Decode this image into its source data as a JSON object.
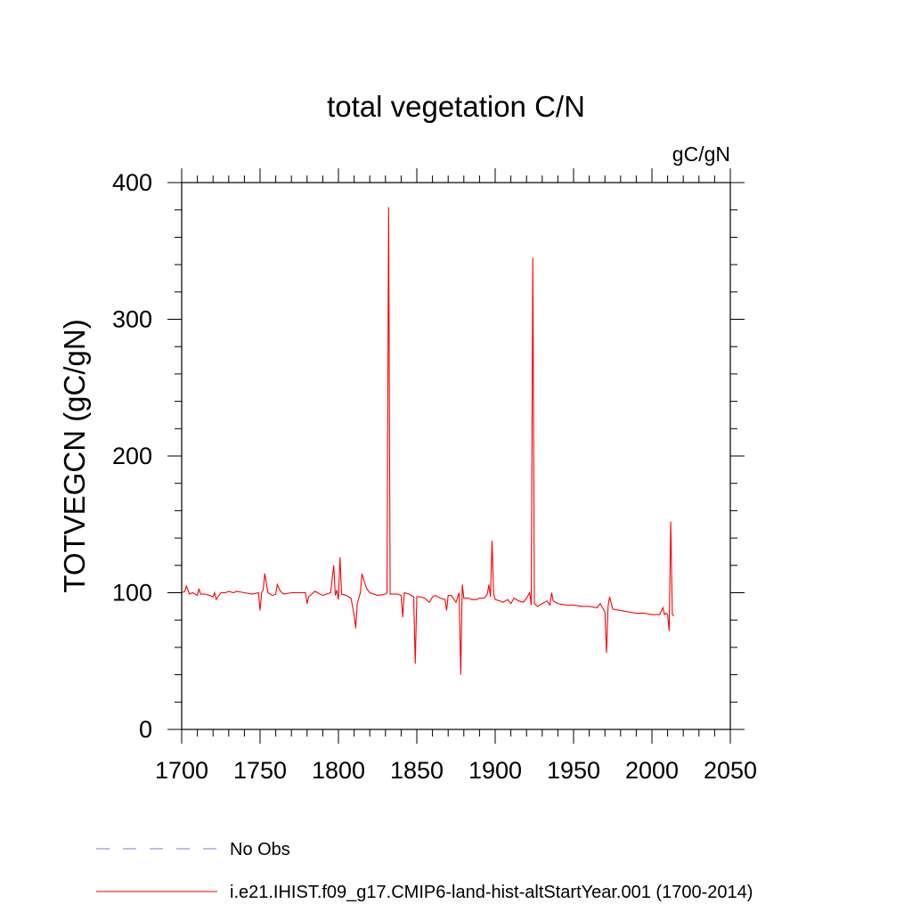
{
  "chart_data": {
    "type": "line",
    "title": "total vegetation C/N",
    "units_label": "gC/gN",
    "ylabel": "TOTVEGCN  (gC/gN)",
    "xlabel": "",
    "xlim": [
      1700,
      2050
    ],
    "ylim": [
      0,
      400
    ],
    "x_ticks": [
      1700,
      1750,
      1800,
      1850,
      1900,
      1950,
      2000,
      2050
    ],
    "y_ticks": [
      0,
      100,
      200,
      300,
      400
    ],
    "grid": false,
    "legend_position": "bottom",
    "series": [
      {
        "name": "i.e21.IHIST.f09_g17.CMIP6-land-hist-altStartYear.001 (1700-2014)",
        "color": "#ff0000",
        "style": "solid",
        "x": [
          1700,
          1702,
          1703,
          1705,
          1707,
          1710,
          1711,
          1712,
          1715,
          1718,
          1720,
          1721,
          1722,
          1725,
          1728,
          1730,
          1733,
          1735,
          1740,
          1745,
          1749,
          1750,
          1751,
          1752,
          1753,
          1755,
          1758,
          1760,
          1761,
          1763,
          1765,
          1770,
          1775,
          1779,
          1780,
          1781,
          1785,
          1790,
          1795,
          1797,
          1798,
          1799,
          1800,
          1801,
          1802,
          1805,
          1808,
          1810,
          1811,
          1812,
          1814,
          1815,
          1816,
          1818,
          1820,
          1825,
          1830,
          1831,
          1832,
          1833,
          1835,
          1838,
          1840,
          1841,
          1842,
          1845,
          1848,
          1849,
          1850,
          1851,
          1852,
          1855,
          1858,
          1860,
          1862,
          1865,
          1868,
          1869,
          1870,
          1872,
          1875,
          1877,
          1878,
          1879,
          1880,
          1883,
          1885,
          1888,
          1890,
          1893,
          1895,
          1896,
          1897,
          1898,
          1899,
          1900,
          1903,
          1905,
          1908,
          1910,
          1912,
          1915,
          1918,
          1920,
          1922,
          1923,
          1924,
          1925,
          1926,
          1927,
          1930,
          1933,
          1935,
          1936,
          1937,
          1940,
          1945,
          1950,
          1955,
          1960,
          1965,
          1967,
          1970,
          1971,
          1972,
          1973,
          1975,
          1980,
          1985,
          1990,
          1995,
          2000,
          2005,
          2007,
          2008,
          2009,
          2010,
          2011,
          2012,
          2013,
          2014
        ],
        "y": [
          100,
          101,
          105,
          99,
          100,
          98,
          103,
          99,
          99,
          98,
          97,
          100,
          95,
          100,
          100,
          101,
          100,
          101,
          100,
          99,
          100,
          87,
          100,
          102,
          114,
          100,
          98,
          99,
          106,
          101,
          99,
          100,
          100,
          100,
          92,
          97,
          101,
          98,
          100,
          120,
          98,
          102,
          95,
          126,
          99,
          98,
          96,
          84,
          74,
          92,
          100,
          114,
          110,
          103,
          100,
          98,
          99,
          100,
          382,
          99,
          99,
          99,
          98,
          82,
          100,
          99,
          97,
          48,
          97,
          97,
          97,
          96,
          93,
          97,
          98,
          96,
          95,
          87,
          98,
          98,
          93,
          100,
          40,
          106,
          96,
          96,
          95,
          95,
          96,
          96,
          99,
          106,
          97,
          138,
          99,
          95,
          94,
          93,
          95,
          92,
          96,
          94,
          93,
          96,
          100,
          91,
          345,
          92,
          91,
          90,
          92,
          94,
          91,
          100,
          94,
          92,
          91,
          91,
          90,
          90,
          89,
          92,
          86,
          56,
          90,
          97,
          88,
          87,
          86,
          85,
          85,
          84,
          84,
          89,
          84,
          85,
          84,
          72,
          152,
          84,
          83
        ]
      },
      {
        "name": "No Obs",
        "color": "#8c78c8",
        "style": "dashed",
        "x": [],
        "y": []
      }
    ]
  }
}
